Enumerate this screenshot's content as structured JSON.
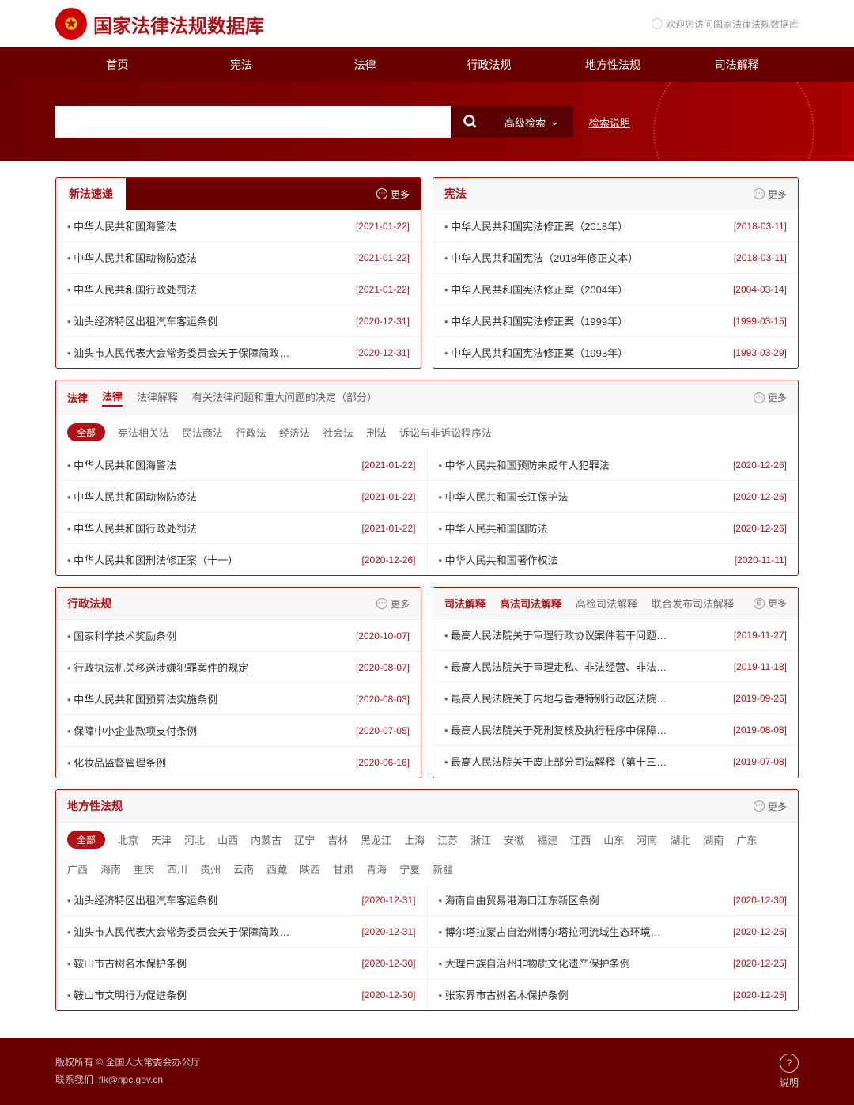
{
  "site_title": "国家法律法规数据库",
  "welcome": "欢迎您访问国家法律法规数据库",
  "nav": [
    "首页",
    "宪法",
    "法律",
    "行政法规",
    "地方性法规",
    "司法解释"
  ],
  "search": {
    "adv": "高级检索",
    "help": "检索说明"
  },
  "more_label": "更多",
  "panel1": {
    "title": "新法速递",
    "items": [
      {
        "t": "中华人民共和国海警法",
        "d": "[2021-01-22]"
      },
      {
        "t": "中华人民共和国动物防疫法",
        "d": "[2021-01-22]"
      },
      {
        "t": "中华人民共和国行政处罚法",
        "d": "[2021-01-22]"
      },
      {
        "t": "汕头经济特区出租汽车客运条例",
        "d": "[2020-12-31]"
      },
      {
        "t": "汕头市人民代表大会常务委员会关于保障简政放权促进…",
        "d": "[2020-12-31]"
      }
    ]
  },
  "panel2": {
    "title": "宪法",
    "items": [
      {
        "t": "中华人民共和国宪法修正案（2018年）",
        "d": "[2018-03-11]"
      },
      {
        "t": "中华人民共和国宪法（2018年修正文本）",
        "d": "[2018-03-11]"
      },
      {
        "t": "中华人民共和国宪法修正案（2004年）",
        "d": "[2004-03-14]"
      },
      {
        "t": "中华人民共和国宪法修正案（1999年）",
        "d": "[1999-03-15]"
      },
      {
        "t": "中华人民共和国宪法修正案（1993年）",
        "d": "[1993-03-29]"
      }
    ]
  },
  "panel3": {
    "title": "法律",
    "tabs": [
      "法律",
      "法律解释",
      "有关法律问题和重大问题的决定（部分）"
    ],
    "cats": [
      "全部",
      "宪法相关法",
      "民法商法",
      "行政法",
      "经济法",
      "社会法",
      "刑法",
      "诉讼与非诉讼程序法"
    ],
    "left": [
      {
        "t": "中华人民共和国海警法",
        "d": "[2021-01-22]"
      },
      {
        "t": "中华人民共和国动物防疫法",
        "d": "[2021-01-22]"
      },
      {
        "t": "中华人民共和国行政处罚法",
        "d": "[2021-01-22]"
      },
      {
        "t": "中华人民共和国刑法修正案（十一）",
        "d": "[2020-12-26]"
      }
    ],
    "right": [
      {
        "t": "中华人民共和国预防未成年人犯罪法",
        "d": "[2020-12-26]"
      },
      {
        "t": "中华人民共和国长江保护法",
        "d": "[2020-12-26]"
      },
      {
        "t": "中华人民共和国国防法",
        "d": "[2020-12-26]"
      },
      {
        "t": "中华人民共和国著作权法",
        "d": "[2020-11-11]"
      }
    ]
  },
  "panel4": {
    "title": "行政法规",
    "items": [
      {
        "t": "国家科学技术奖励条例",
        "d": "[2020-10-07]"
      },
      {
        "t": "行政执法机关移送涉嫌犯罪案件的规定",
        "d": "[2020-08-07]"
      },
      {
        "t": "中华人民共和国预算法实施条例",
        "d": "[2020-08-03]"
      },
      {
        "t": "保障中小企业款项支付条例",
        "d": "[2020-07-05]"
      },
      {
        "t": "化妆品监督管理条例",
        "d": "[2020-06-16]"
      }
    ]
  },
  "panel5": {
    "title": "司法解释",
    "tabs": [
      "高法司法解释",
      "高检司法解释",
      "联合发布司法解释"
    ],
    "items": [
      {
        "t": "最高人民法院关于审理行政协议案件若干问题的规定",
        "d": "[2019-11-27]"
      },
      {
        "t": "最高人民法院关于审理走私、非法经营、非法使用兴奋…",
        "d": "[2019-11-18]"
      },
      {
        "t": "最高人民法院关于内地与香港特别行政区法院就仲裁程…",
        "d": "[2019-09-26]"
      },
      {
        "t": "最高人民法院关于死刑复核及执行程序中保障当事人合…",
        "d": "[2019-08-08]"
      },
      {
        "t": "最高人民法院关于废止部分司法解释（第十三批）的决定",
        "d": "[2019-07-08]"
      }
    ]
  },
  "panel6": {
    "title": "地方性法规",
    "regions": [
      "全部",
      "北京",
      "天津",
      "河北",
      "山西",
      "内蒙古",
      "辽宁",
      "吉林",
      "黑龙江",
      "上海",
      "江苏",
      "浙江",
      "安徽",
      "福建",
      "江西",
      "山东",
      "河南",
      "湖北",
      "湖南",
      "广东",
      "广西",
      "海南",
      "重庆",
      "四川",
      "贵州",
      "云南",
      "西藏",
      "陕西",
      "甘肃",
      "青海",
      "宁夏",
      "新疆"
    ],
    "left": [
      {
        "t": "汕头经济特区出租汽车客运条例",
        "d": "[2020-12-31]"
      },
      {
        "t": "汕头市人民代表大会常务委员会关于保障简政放权促进…",
        "d": "[2020-12-31]"
      },
      {
        "t": "鞍山市古树名木保护条例",
        "d": "[2020-12-30]"
      },
      {
        "t": "鞍山市文明行为促进条例",
        "d": "[2020-12-30]"
      }
    ],
    "right": [
      {
        "t": "海南自由贸易港海口江东新区条例",
        "d": "[2020-12-30]"
      },
      {
        "t": "博尔塔拉蒙古自治州博尔塔拉河流域生态环境保护条例",
        "d": "[2020-12-25]"
      },
      {
        "t": "大理白族自治州非物质文化遗产保护条例",
        "d": "[2020-12-25]"
      },
      {
        "t": "张家界市古树名木保护条例",
        "d": "[2020-12-25]"
      }
    ]
  },
  "footer": {
    "copyright": "版权所有 © 全国人大常委会办公厅",
    "contact": "联系我们",
    "email": "flk@npc.gov.cn",
    "help": "说明"
  }
}
